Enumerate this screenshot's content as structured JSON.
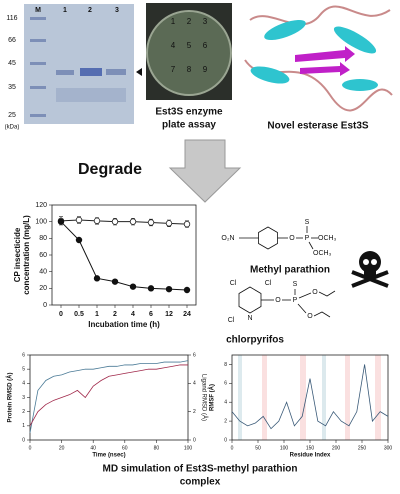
{
  "gel": {
    "lanes": [
      "M",
      "1",
      "2",
      "3"
    ],
    "markers": [
      116,
      66,
      45,
      35,
      25
    ],
    "unit": "(kDa)"
  },
  "plate": {
    "wells": [
      "1",
      "2",
      "3",
      "4",
      "5",
      "6",
      "7",
      "8",
      "9"
    ],
    "caption": [
      "Est3S enzyme",
      "plate assay"
    ]
  },
  "protein": {
    "caption": "Novel esterase Est3S"
  },
  "arrow_label": "Degrade",
  "chart_data": [
    {
      "type": "line",
      "xlabel": "Incubation time (h)",
      "ylabel": [
        "CP insecticide",
        "concentration (mg/L)"
      ],
      "categories": [
        "0",
        "0.5",
        "1",
        "2",
        "4",
        "6",
        "12",
        "24"
      ],
      "series": [
        {
          "color": "#222222",
          "marker": "open",
          "values": [
            101,
            102,
            101,
            100,
            100,
            99,
            98,
            97
          ],
          "errors": [
            5,
            4,
            4,
            4,
            4,
            4,
            4,
            4
          ]
        },
        {
          "color": "#111111",
          "marker": "filled",
          "values": [
            100,
            78,
            32,
            28,
            22,
            20,
            19,
            18
          ]
        }
      ],
      "ylim": [
        0,
        120
      ],
      "yticks": [
        0,
        20,
        40,
        60,
        80,
        100,
        120
      ]
    },
    {
      "type": "line",
      "xlabel": "Time (nsec)",
      "ylabel": [
        "Protein RMSD (Å)"
      ],
      "y2label": "Ligand RMSD (Å)",
      "x": [
        0,
        5,
        10,
        15,
        20,
        25,
        30,
        35,
        40,
        45,
        50,
        55,
        60,
        65,
        70,
        75,
        80,
        85,
        90,
        95,
        100
      ],
      "series": [
        {
          "color": "#4a7a96",
          "values": [
            0.5,
            3.5,
            4.2,
            4.5,
            4.6,
            4.8,
            4.9,
            5.0,
            5.0,
            5.1,
            5.2,
            5.2,
            5.3,
            5.3,
            5.4,
            5.4,
            5.4,
            5.5,
            5.5,
            5.5,
            5.6
          ]
        },
        {
          "color": "#a0284a",
          "axis": "y2",
          "values": [
            1.0,
            2.0,
            2.5,
            2.8,
            3.0,
            3.2,
            3.5,
            3.0,
            3.8,
            4.2,
            4.5,
            4.6,
            4.7,
            4.8,
            4.9,
            5.0,
            5.0,
            5.1,
            5.2,
            5.3,
            5.3
          ]
        }
      ],
      "xlim": [
        0,
        100
      ],
      "xticks": [
        0,
        20,
        40,
        60,
        80,
        100
      ],
      "ylim": [
        0,
        6
      ],
      "yticks": [
        0,
        1,
        2,
        3,
        4,
        5,
        6
      ],
      "y2lim": [
        0,
        6
      ],
      "y2ticks": [
        0,
        2,
        4,
        6
      ]
    },
    {
      "type": "line",
      "xlabel": "Residue Index",
      "ylabel": [
        "RMSF (Å)"
      ],
      "x": [
        0,
        15,
        30,
        45,
        60,
        75,
        90,
        105,
        120,
        135,
        150,
        165,
        180,
        195,
        210,
        225,
        240,
        255,
        270,
        285,
        300
      ],
      "series": [
        {
          "color": "#3a5a78",
          "values": [
            3,
            2,
            1.5,
            1.8,
            2.5,
            1.2,
            2,
            4,
            1.5,
            2.5,
            6.5,
            2,
            1.5,
            3,
            2,
            1.5,
            3,
            8,
            2,
            3,
            2.5
          ]
        }
      ],
      "xlim": [
        0,
        300
      ],
      "xticks": [
        0,
        50,
        100,
        150,
        200,
        250,
        300
      ],
      "ylim": [
        0,
        9
      ],
      "yticks": [
        0,
        2,
        4,
        6,
        8
      ]
    }
  ],
  "chemicals": {
    "methyl_parathion": {
      "name": "Methyl parathion",
      "atoms": [
        "O₂N",
        "O",
        "P",
        "S",
        "OCH₃",
        "OCH₃"
      ]
    },
    "chlorpyrifos": {
      "name": "chlorpyrifos",
      "atoms": [
        "Cl",
        "Cl",
        "Cl",
        "N",
        "O",
        "P",
        "S",
        "O",
        "O"
      ]
    }
  },
  "caption": [
    "MD simulation of Est3S-methyl parathion",
    "complex"
  ]
}
